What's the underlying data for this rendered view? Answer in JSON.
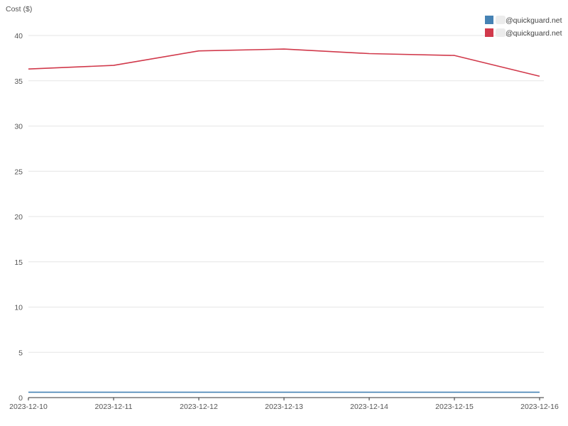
{
  "chart_data": {
    "type": "line",
    "ylabel": "Cost ($)",
    "xlabel": "",
    "categories": [
      "2023-12-10",
      "2023-12-11",
      "2023-12-12",
      "2023-12-13",
      "2023-12-14",
      "2023-12-15",
      "2023-12-16"
    ],
    "ylim": [
      0,
      40
    ],
    "yticks": [
      0,
      5,
      10,
      15,
      20,
      25,
      30,
      35,
      40
    ],
    "grid": true,
    "legend_position": "top-right",
    "series": [
      {
        "name": "@quickguard.net",
        "color": "#4682b4",
        "values": [
          0.6,
          0.6,
          0.6,
          0.6,
          0.6,
          0.6,
          0.6
        ]
      },
      {
        "name": "@quickguard.net",
        "color": "#d1394b",
        "values": [
          36.3,
          36.7,
          38.3,
          38.5,
          38.0,
          37.8,
          35.5
        ]
      }
    ]
  }
}
